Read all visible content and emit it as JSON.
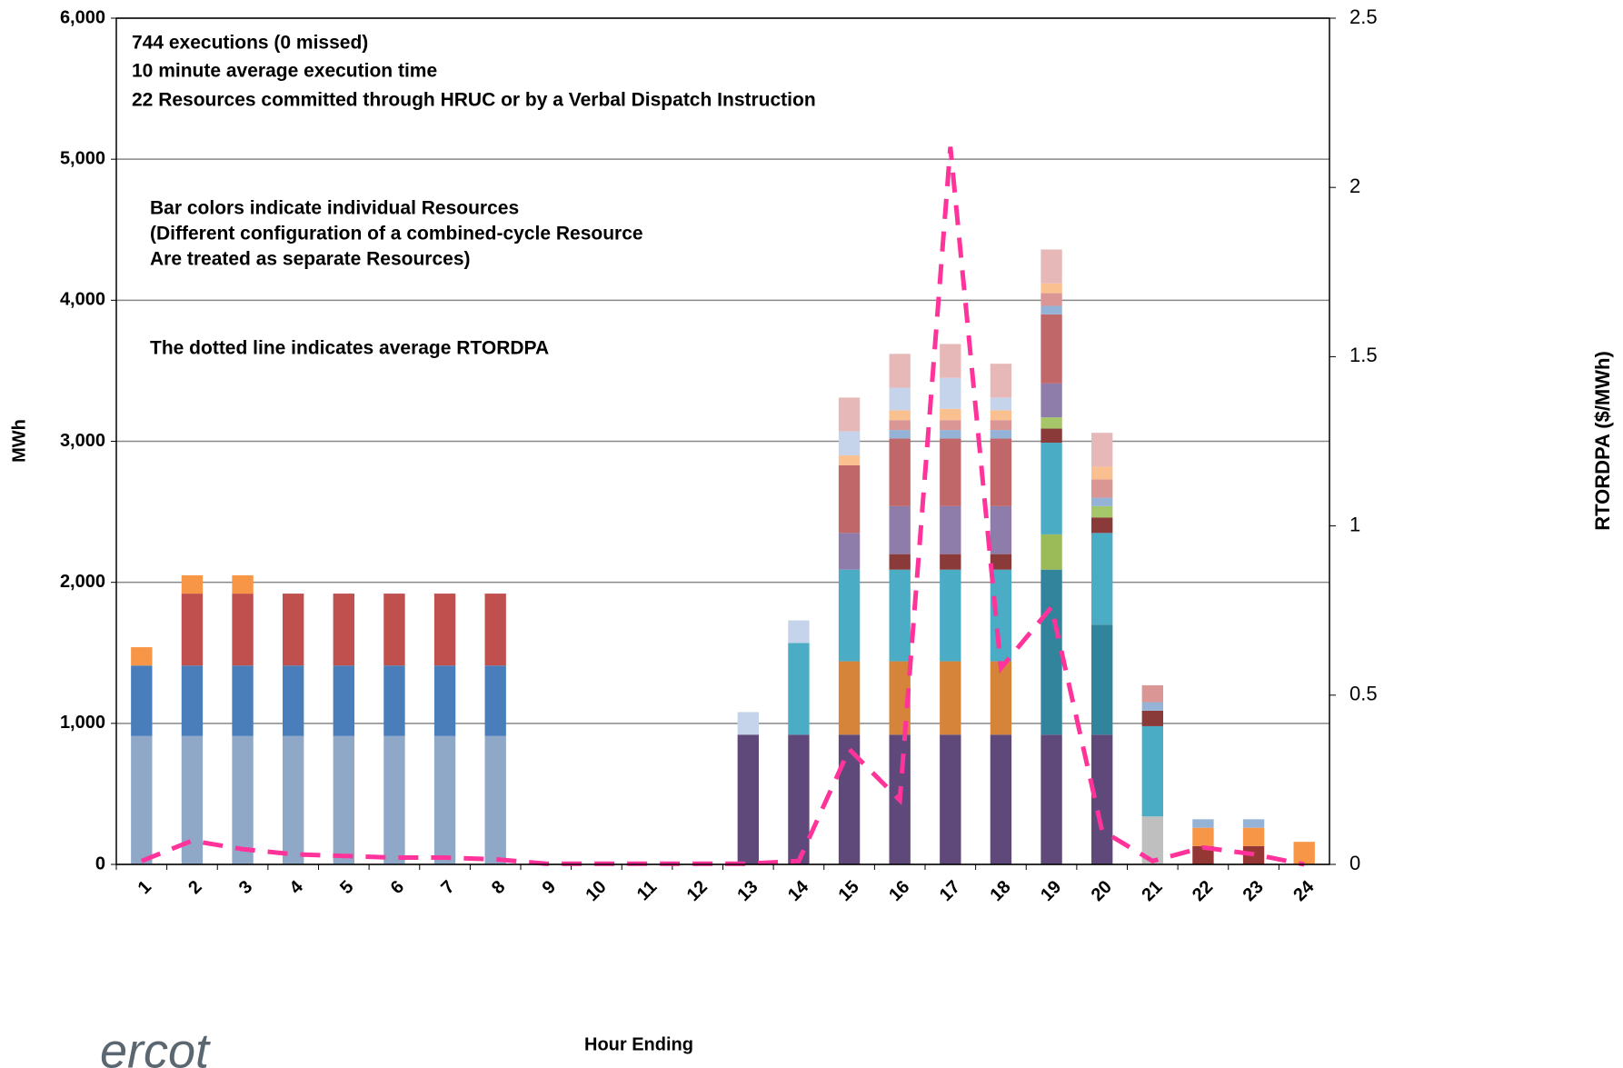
{
  "chart_data": {
    "type": "bar",
    "stacked": true,
    "logo": "ercot",
    "notes": [
      "744 executions (0 missed)",
      "10 minute average execution time",
      "22 Resources committed through HRUC or by a Verbal Dispatch Instruction",
      "Bar colors indicate individual Resources",
      "(Different configuration of a combined-cycle Resource",
      "Are treated as separate Resources)",
      "The dotted line indicates average RTORDPA"
    ],
    "x_label": "Hour Ending",
    "y_label": "MWh",
    "y2_label": "RTORDPA ($/MWh)",
    "categories": [
      "1",
      "2",
      "3",
      "4",
      "5",
      "6",
      "7",
      "8",
      "9",
      "10",
      "11",
      "12",
      "13",
      "14",
      "15",
      "16",
      "17",
      "18",
      "19",
      "20",
      "21",
      "22",
      "23",
      "24"
    ],
    "ylim": [
      0,
      6000
    ],
    "yticks": [
      0,
      {
        "value": 1000,
        "label": "1,000"
      },
      {
        "value": 2000,
        "label": "2,000"
      },
      {
        "value": 3000,
        "label": "3,000"
      },
      {
        "value": 4000,
        "label": "4,000"
      },
      {
        "value": 5000,
        "label": "5,000"
      },
      {
        "value": 6000,
        "label": "6,000"
      }
    ],
    "y2lim": [
      0,
      2.5
    ],
    "y2ticks": [
      0,
      0.5,
      1,
      1.5,
      2,
      2.5
    ],
    "grid": true,
    "series": [
      {
        "color": "#8fa8c8",
        "values": [
          910,
          910,
          910,
          910,
          910,
          910,
          910,
          910,
          0,
          0,
          0,
          0,
          0,
          0,
          0,
          0,
          0,
          0,
          0,
          0,
          0,
          0,
          0,
          0
        ]
      },
      {
        "color": "#4a7ebb",
        "values": [
          500,
          500,
          500,
          500,
          500,
          500,
          500,
          500,
          0,
          0,
          0,
          0,
          0,
          0,
          0,
          0,
          0,
          0,
          0,
          0,
          0,
          0,
          0,
          0
        ]
      },
      {
        "color": "#c0504d",
        "values": [
          0,
          510,
          510,
          510,
          510,
          510,
          510,
          510,
          0,
          0,
          0,
          0,
          0,
          0,
          0,
          0,
          0,
          0,
          0,
          0,
          0,
          0,
          0,
          0
        ]
      },
      {
        "color": "#f79646",
        "values": [
          130,
          130,
          130,
          0,
          0,
          0,
          0,
          0,
          0,
          0,
          0,
          0,
          0,
          0,
          0,
          0,
          0,
          0,
          0,
          0,
          0,
          0,
          0,
          0
        ]
      },
      {
        "color": "#5f497a",
        "values": [
          0,
          0,
          0,
          0,
          0,
          0,
          0,
          0,
          0,
          0,
          0,
          0,
          920,
          920,
          920,
          920,
          920,
          920,
          920,
          920,
          0,
          0,
          0,
          0
        ]
      },
      {
        "color": "#bfbfbf",
        "values": [
          0,
          0,
          0,
          0,
          0,
          0,
          0,
          0,
          0,
          0,
          0,
          0,
          0,
          0,
          0,
          0,
          0,
          0,
          0,
          0,
          340,
          0,
          0,
          0
        ]
      },
      {
        "color": "#31849b",
        "values": [
          0,
          0,
          0,
          0,
          0,
          0,
          0,
          0,
          0,
          0,
          0,
          0,
          0,
          0,
          0,
          0,
          0,
          0,
          1170,
          780,
          0,
          0,
          0,
          0
        ]
      },
      {
        "color": "#d6843a",
        "values": [
          0,
          0,
          0,
          0,
          0,
          0,
          0,
          0,
          0,
          0,
          0,
          0,
          0,
          0,
          520,
          520,
          520,
          520,
          0,
          0,
          0,
          0,
          0,
          0
        ]
      },
      {
        "color": "#9bbb59",
        "values": [
          0,
          0,
          0,
          0,
          0,
          0,
          0,
          0,
          0,
          0,
          0,
          0,
          0,
          0,
          0,
          0,
          0,
          0,
          250,
          0,
          0,
          0,
          0,
          0
        ]
      },
      {
        "color": "#4bacc6",
        "values": [
          0,
          0,
          0,
          0,
          0,
          0,
          0,
          0,
          0,
          0,
          0,
          0,
          0,
          650,
          650,
          650,
          650,
          650,
          650,
          650,
          640,
          0,
          0,
          0
        ]
      },
      {
        "color": "#8b3a3a",
        "values": [
          0,
          0,
          0,
          0,
          0,
          0,
          0,
          0,
          0,
          0,
          0,
          0,
          0,
          0,
          0,
          110,
          110,
          110,
          100,
          110,
          110,
          0,
          0,
          0
        ]
      },
      {
        "color": "#a6c66a",
        "values": [
          0,
          0,
          0,
          0,
          0,
          0,
          0,
          0,
          0,
          0,
          0,
          0,
          0,
          0,
          0,
          0,
          0,
          0,
          80,
          80,
          0,
          0,
          0,
          0
        ]
      },
      {
        "color": "#8e7cab",
        "values": [
          0,
          0,
          0,
          0,
          0,
          0,
          0,
          0,
          0,
          0,
          0,
          0,
          0,
          0,
          260,
          340,
          340,
          340,
          240,
          0,
          0,
          0,
          0,
          0
        ]
      },
      {
        "color": "#c0676a",
        "values": [
          0,
          0,
          0,
          0,
          0,
          0,
          0,
          0,
          0,
          0,
          0,
          0,
          0,
          0,
          480,
          480,
          480,
          480,
          490,
          0,
          0,
          0,
          0,
          0
        ]
      },
      {
        "color": "#95b3d7",
        "values": [
          0,
          0,
          0,
          0,
          0,
          0,
          0,
          0,
          0,
          0,
          0,
          0,
          0,
          0,
          0,
          60,
          60,
          60,
          60,
          60,
          60,
          0,
          0,
          0
        ]
      },
      {
        "color": "#d99694",
        "values": [
          0,
          0,
          0,
          0,
          0,
          0,
          0,
          0,
          0,
          0,
          0,
          0,
          0,
          0,
          0,
          70,
          70,
          70,
          90,
          130,
          120,
          0,
          0,
          0
        ]
      },
      {
        "color": "#fac090",
        "values": [
          0,
          0,
          0,
          0,
          0,
          0,
          0,
          0,
          0,
          0,
          0,
          0,
          0,
          0,
          70,
          70,
          80,
          70,
          70,
          90,
          0,
          0,
          0,
          0
        ]
      },
      {
        "color": "#c5d4ea",
        "values": [
          0,
          0,
          0,
          0,
          0,
          0,
          0,
          0,
          0,
          0,
          0,
          0,
          160,
          160,
          170,
          160,
          220,
          90,
          0,
          0,
          0,
          0,
          0,
          0
        ]
      },
      {
        "color": "#e6b9b8",
        "values": [
          0,
          0,
          0,
          0,
          0,
          0,
          0,
          0,
          0,
          0,
          0,
          0,
          0,
          0,
          240,
          240,
          240,
          240,
          240,
          240,
          0,
          0,
          0,
          0
        ]
      },
      {
        "color": "#953735",
        "values": [
          0,
          0,
          0,
          0,
          0,
          0,
          0,
          0,
          0,
          0,
          0,
          0,
          0,
          0,
          0,
          0,
          0,
          0,
          0,
          0,
          0,
          130,
          130,
          0
        ]
      },
      {
        "color": "#f79646",
        "values": [
          0,
          0,
          0,
          0,
          0,
          0,
          0,
          0,
          0,
          0,
          0,
          0,
          0,
          0,
          0,
          0,
          0,
          0,
          0,
          0,
          0,
          130,
          130,
          160
        ]
      },
      {
        "color": "#95b3d7",
        "values": [
          0,
          0,
          0,
          0,
          0,
          0,
          0,
          0,
          0,
          0,
          0,
          0,
          0,
          0,
          0,
          0,
          0,
          0,
          0,
          0,
          0,
          60,
          60,
          0
        ]
      },
      {
        "type": "line",
        "axis": "y2",
        "color": "#ff3399",
        "dashed": true,
        "values": [
          0.01,
          0.07,
          0.045,
          0.03,
          0.025,
          0.02,
          0.02,
          0.015,
          0.002,
          0.002,
          0.002,
          0.002,
          0.002,
          0.01,
          0.34,
          0.19,
          2.12,
          0.58,
          0.76,
          0.1,
          0.01,
          0.05,
          0.03,
          0
        ]
      }
    ]
  }
}
